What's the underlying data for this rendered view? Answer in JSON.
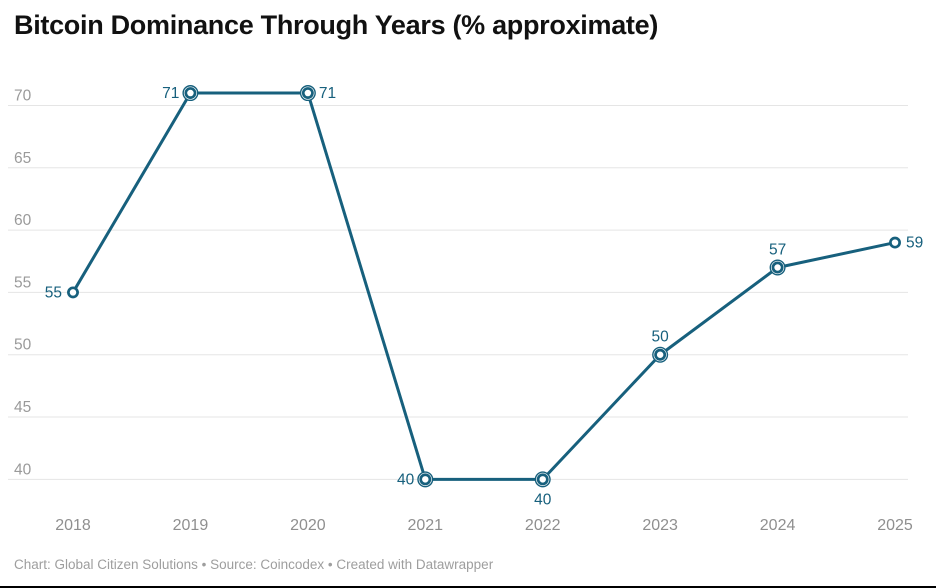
{
  "title": "Bitcoin Dominance Through Years (% approximate)",
  "footer": "Chart: Global Citizen Solutions • Source: Coincodex • Created with Datawrapper",
  "colors": {
    "line": "#17607d",
    "value_label": "#17607d",
    "y_axis_label": "#9a9a9a",
    "x_axis_label": "#8f8f8f",
    "grid": "#e5e5e5",
    "title": "#111111",
    "footer": "#9e9e9e",
    "background": "#ffffff",
    "bottom_border": "#000000"
  },
  "chart_data": {
    "type": "line",
    "title": "Bitcoin Dominance Through Years (% approximate)",
    "xlabel": "",
    "ylabel": "",
    "categories": [
      "2018",
      "2019",
      "2020",
      "2021",
      "2022",
      "2023",
      "2024",
      "2025"
    ],
    "values": [
      55,
      71,
      71,
      40,
      40,
      50,
      57,
      59
    ],
    "value_labels": [
      "55",
      "71",
      "71",
      "40",
      "40",
      "50",
      "57",
      "59"
    ],
    "label_positions": [
      "left",
      "left",
      "right",
      "left",
      "below",
      "above",
      "above",
      "right"
    ],
    "yticks": [
      40,
      45,
      50,
      55,
      60,
      65,
      70
    ],
    "ylim": [
      38,
      73
    ],
    "grid": true,
    "legend": "none",
    "marker": "open-circle",
    "marker_halo_on_inner_points": true
  }
}
